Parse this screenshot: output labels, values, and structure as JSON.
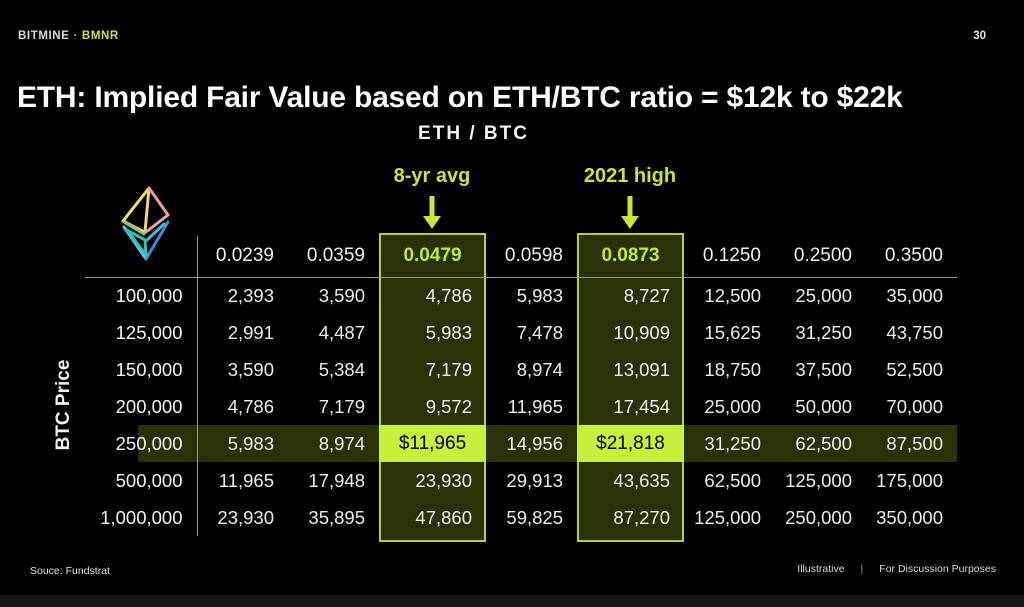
{
  "header": {
    "brand": "BITMINE",
    "separator": "·",
    "ticker": "BMNR",
    "page_number": "30"
  },
  "title": "ETH: Implied Fair Value based on ETH/BTC ratio = $12k to $22k",
  "subtitle": "ETH / BTC",
  "annotations": [
    {
      "label": "8-yr avg"
    },
    {
      "label": "2021 high"
    }
  ],
  "table": {
    "row_axis_label": "BTC Price",
    "columns": [
      "0.0239",
      "0.0359",
      "0.0479",
      "0.0598",
      "0.0873",
      "0.1250",
      "0.2500",
      "0.3500"
    ],
    "highlight_col_indexes": [
      2,
      4
    ],
    "highlight_row_index": 4,
    "rows": [
      {
        "label": "100,000",
        "values": [
          "2,393",
          "3,590",
          "4,786",
          "5,983",
          "8,727",
          "12,500",
          "25,000",
          "35,000"
        ]
      },
      {
        "label": "125,000",
        "values": [
          "2,991",
          "4,487",
          "5,983",
          "7,478",
          "10,909",
          "15,625",
          "31,250",
          "43,750"
        ]
      },
      {
        "label": "150,000",
        "values": [
          "3,590",
          "5,384",
          "7,179",
          "8,974",
          "13,091",
          "18,750",
          "37,500",
          "52,500"
        ]
      },
      {
        "label": "200,000",
        "values": [
          "4,786",
          "7,179",
          "9,572",
          "11,965",
          "17,454",
          "25,000",
          "50,000",
          "70,000"
        ]
      },
      {
        "label": "250,000",
        "values": [
          "5,983",
          "8,974",
          "$11,965",
          "14,956",
          "$21,818",
          "31,250",
          "62,500",
          "87,500"
        ]
      },
      {
        "label": "500,000",
        "values": [
          "11,965",
          "17,948",
          "23,930",
          "29,913",
          "43,635",
          "62,500",
          "125,000",
          "175,000"
        ]
      },
      {
        "label": "1,000,000",
        "values": [
          "23,930",
          "35,895",
          "47,860",
          "59,825",
          "87,270",
          "125,000",
          "250,000",
          "350,000"
        ]
      }
    ]
  },
  "footer": {
    "source": "Souce: Fundstrat",
    "illustrative": "Illustrative",
    "divider": "|",
    "purposes": "For Discussion Purposes"
  },
  "colors": {
    "accent_green": "#c8e636",
    "border_green": "#b7d22f",
    "bright_green": "#c9ef3d",
    "olive_bg": "#293107",
    "grid_gray": "#9a9a9a"
  },
  "chart_data": {
    "type": "table",
    "title": "ETH: Implied Fair Value based on ETH/BTC ratio = $12k to $22k",
    "subtitle": "ETH / BTC",
    "column_header_label": "ETH/BTC ratio",
    "row_header_label": "BTC Price",
    "columns": [
      0.0239,
      0.0359,
      0.0479,
      0.0598,
      0.0873,
      0.125,
      0.25,
      0.35
    ],
    "rows": [
      100000,
      125000,
      150000,
      200000,
      250000,
      500000,
      1000000
    ],
    "values": [
      [
        2393,
        3590,
        4786,
        5983,
        8727,
        12500,
        25000,
        35000
      ],
      [
        2991,
        4487,
        5983,
        7478,
        10909,
        15625,
        31250,
        43750
      ],
      [
        3590,
        5384,
        7179,
        8974,
        13091,
        18750,
        37500,
        52500
      ],
      [
        4786,
        7179,
        9572,
        11965,
        17454,
        25000,
        50000,
        70000
      ],
      [
        5983,
        8974,
        11965,
        14956,
        21818,
        31250,
        62500,
        87500
      ],
      [
        11965,
        17948,
        23930,
        29913,
        43635,
        62500,
        125000,
        175000
      ],
      [
        23930,
        35895,
        47860,
        59825,
        87270,
        125000,
        250000,
        350000
      ]
    ],
    "annotations": [
      {
        "label": "8-yr avg",
        "column": 0.0479
      },
      {
        "label": "2021 high",
        "column": 0.0873
      }
    ],
    "highlighted_columns": [
      0.0479,
      0.0873
    ],
    "highlighted_row": 250000,
    "key_values": [
      {
        "row": 250000,
        "column": 0.0479,
        "display": "$11,965"
      },
      {
        "row": 250000,
        "column": 0.0873,
        "display": "$21,818"
      }
    ],
    "legend_position": "none",
    "grid": false
  }
}
